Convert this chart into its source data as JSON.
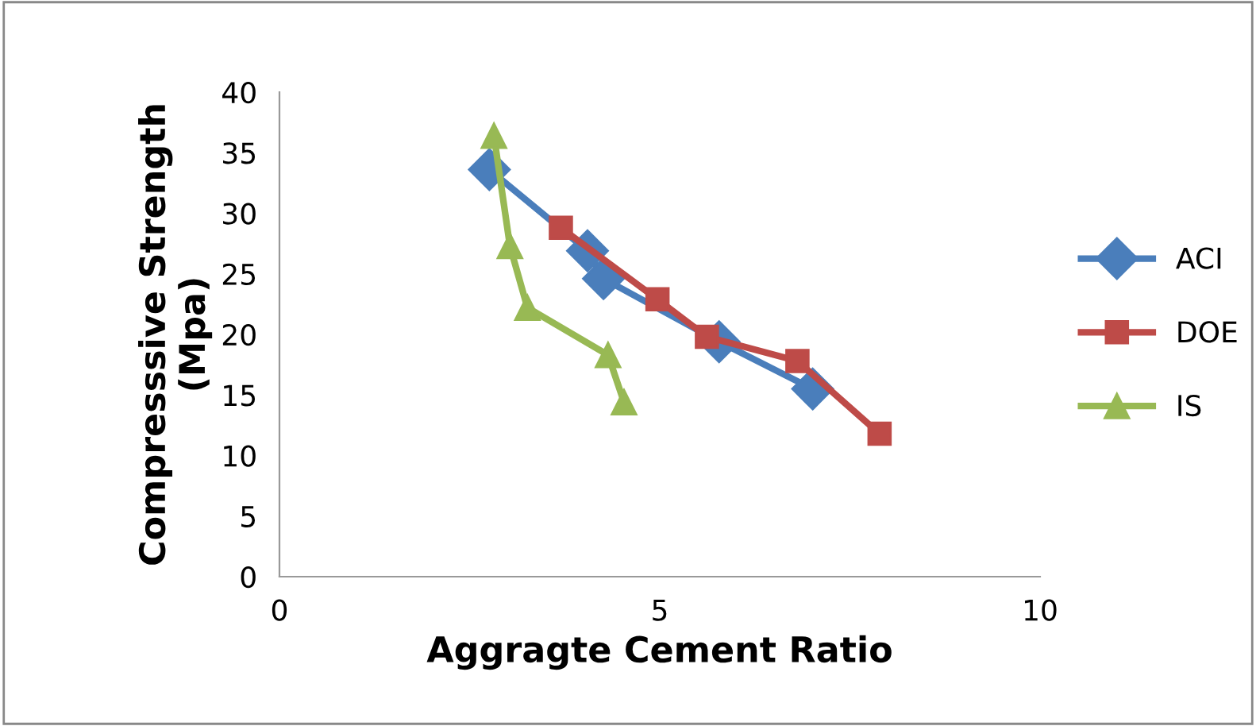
{
  "chart_data": {
    "type": "line",
    "xlabel": "Aggragte Cement Ratio",
    "ylabel": "Compresssive Strength\n(Mpa)",
    "xlim": [
      0,
      10
    ],
    "xticks": [
      0,
      5,
      10
    ],
    "ylim": [
      0,
      40
    ],
    "yticks": [
      0,
      5,
      10,
      15,
      20,
      25,
      30,
      35,
      40
    ],
    "grid": false,
    "legend": "right",
    "series": [
      {
        "name": "ACI",
        "color": "#4a7ebb",
        "marker": "diamond",
        "x": [
          2.76,
          4.05,
          4.26,
          5.78,
          7.01
        ],
        "values": [
          33.6,
          26.9,
          24.6,
          19.4,
          15.5
        ]
      },
      {
        "name": "DOE",
        "color": "#be4b48",
        "marker": "square",
        "x": [
          3.7,
          4.97,
          5.62,
          6.81,
          7.89
        ],
        "values": [
          28.8,
          22.9,
          19.8,
          17.8,
          11.8
        ]
      },
      {
        "name": "IS",
        "color": "#98b954",
        "marker": "triangle",
        "x": [
          2.82,
          3.03,
          3.26,
          4.32,
          4.53
        ],
        "values": [
          36.4,
          27.3,
          22.2,
          18.3,
          14.4
        ]
      }
    ]
  }
}
